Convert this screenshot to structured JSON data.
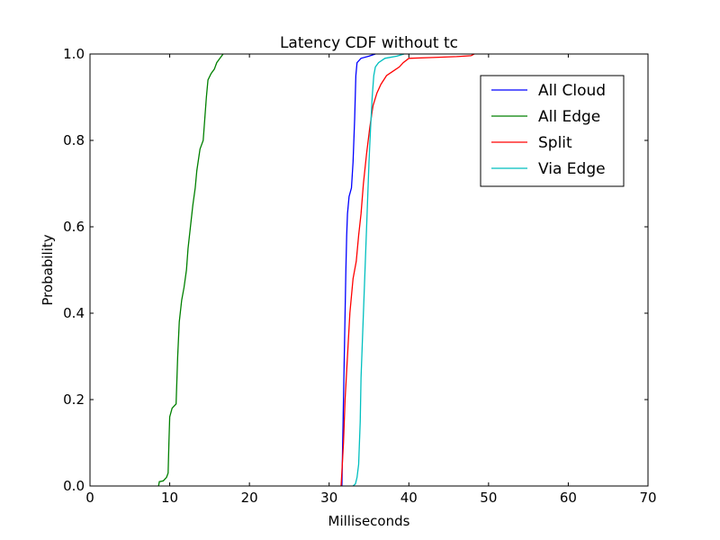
{
  "chart_data": {
    "type": "line",
    "title": "Latency CDF without tc",
    "xlabel": "Milliseconds",
    "ylabel": "Probability",
    "xlim": [
      0,
      70
    ],
    "ylim": [
      0,
      1
    ],
    "grid": false,
    "legend_position": "top-right",
    "x_ticks": [
      0,
      10,
      20,
      30,
      40,
      50,
      60,
      70
    ],
    "x_tick_labels": [
      "0",
      "10",
      "20",
      "30",
      "40",
      "50",
      "60",
      "70"
    ],
    "y_ticks": [
      0,
      0.2,
      0.4,
      0.6,
      0.8,
      1.0
    ],
    "y_tick_labels": [
      "0.0",
      "0.2",
      "0.4",
      "0.6",
      "0.8",
      "1.0"
    ],
    "series": [
      {
        "name": "All Cloud",
        "color": "#0000ff",
        "points": [
          [
            31.6,
            0.0
          ],
          [
            31.7,
            0.1
          ],
          [
            31.8,
            0.2
          ],
          [
            31.9,
            0.3
          ],
          [
            32.0,
            0.4
          ],
          [
            32.1,
            0.5
          ],
          [
            32.2,
            0.58
          ],
          [
            32.3,
            0.63
          ],
          [
            32.5,
            0.67
          ],
          [
            32.8,
            0.69
          ],
          [
            33.0,
            0.75
          ],
          [
            33.2,
            0.85
          ],
          [
            33.35,
            0.95
          ],
          [
            33.5,
            0.98
          ],
          [
            34.0,
            0.99
          ],
          [
            35.0,
            0.995
          ],
          [
            35.8,
            1.0
          ]
        ]
      },
      {
        "name": "All Edge",
        "color": "#008000",
        "points": [
          [
            8.6,
            0.0
          ],
          [
            8.7,
            0.01
          ],
          [
            9.2,
            0.012
          ],
          [
            9.6,
            0.02
          ],
          [
            9.8,
            0.03
          ],
          [
            9.9,
            0.1
          ],
          [
            10.0,
            0.16
          ],
          [
            10.3,
            0.18
          ],
          [
            10.8,
            0.19
          ],
          [
            11.0,
            0.3
          ],
          [
            11.2,
            0.38
          ],
          [
            11.5,
            0.43
          ],
          [
            11.8,
            0.46
          ],
          [
            12.1,
            0.5
          ],
          [
            12.3,
            0.55
          ],
          [
            12.6,
            0.6
          ],
          [
            12.9,
            0.65
          ],
          [
            13.2,
            0.69
          ],
          [
            13.4,
            0.73
          ],
          [
            13.8,
            0.78
          ],
          [
            14.2,
            0.8
          ],
          [
            14.4,
            0.85
          ],
          [
            14.6,
            0.9
          ],
          [
            14.8,
            0.94
          ],
          [
            15.2,
            0.955
          ],
          [
            15.6,
            0.965
          ],
          [
            15.9,
            0.98
          ],
          [
            16.3,
            0.99
          ],
          [
            16.7,
            1.0
          ]
        ]
      },
      {
        "name": "Split",
        "color": "#ff0000",
        "points": [
          [
            31.5,
            0.0
          ],
          [
            31.8,
            0.1
          ],
          [
            32.0,
            0.2
          ],
          [
            32.3,
            0.3
          ],
          [
            32.6,
            0.4
          ],
          [
            33.0,
            0.48
          ],
          [
            33.4,
            0.52
          ],
          [
            33.7,
            0.58
          ],
          [
            34.0,
            0.63
          ],
          [
            34.3,
            0.7
          ],
          [
            34.7,
            0.77
          ],
          [
            35.1,
            0.83
          ],
          [
            35.5,
            0.88
          ],
          [
            36.0,
            0.91
          ],
          [
            36.5,
            0.93
          ],
          [
            37.2,
            0.95
          ],
          [
            38.0,
            0.96
          ],
          [
            38.8,
            0.97
          ],
          [
            39.3,
            0.98
          ],
          [
            40.0,
            0.99
          ],
          [
            43.0,
            0.992
          ],
          [
            46.0,
            0.994
          ],
          [
            47.8,
            0.996
          ],
          [
            48.2,
            1.0
          ]
        ]
      },
      {
        "name": "Via Edge",
        "color": "#00bfbf",
        "points": [
          [
            33.0,
            0.0
          ],
          [
            33.3,
            0.005
          ],
          [
            33.5,
            0.02
          ],
          [
            33.7,
            0.05
          ],
          [
            33.9,
            0.15
          ],
          [
            34.0,
            0.25
          ],
          [
            34.2,
            0.35
          ],
          [
            34.4,
            0.45
          ],
          [
            34.6,
            0.55
          ],
          [
            34.8,
            0.65
          ],
          [
            35.0,
            0.75
          ],
          [
            35.2,
            0.83
          ],
          [
            35.4,
            0.9
          ],
          [
            35.6,
            0.95
          ],
          [
            35.8,
            0.97
          ],
          [
            36.2,
            0.98
          ],
          [
            37.0,
            0.99
          ],
          [
            38.5,
            0.995
          ],
          [
            39.4,
            1.0
          ]
        ]
      }
    ]
  }
}
